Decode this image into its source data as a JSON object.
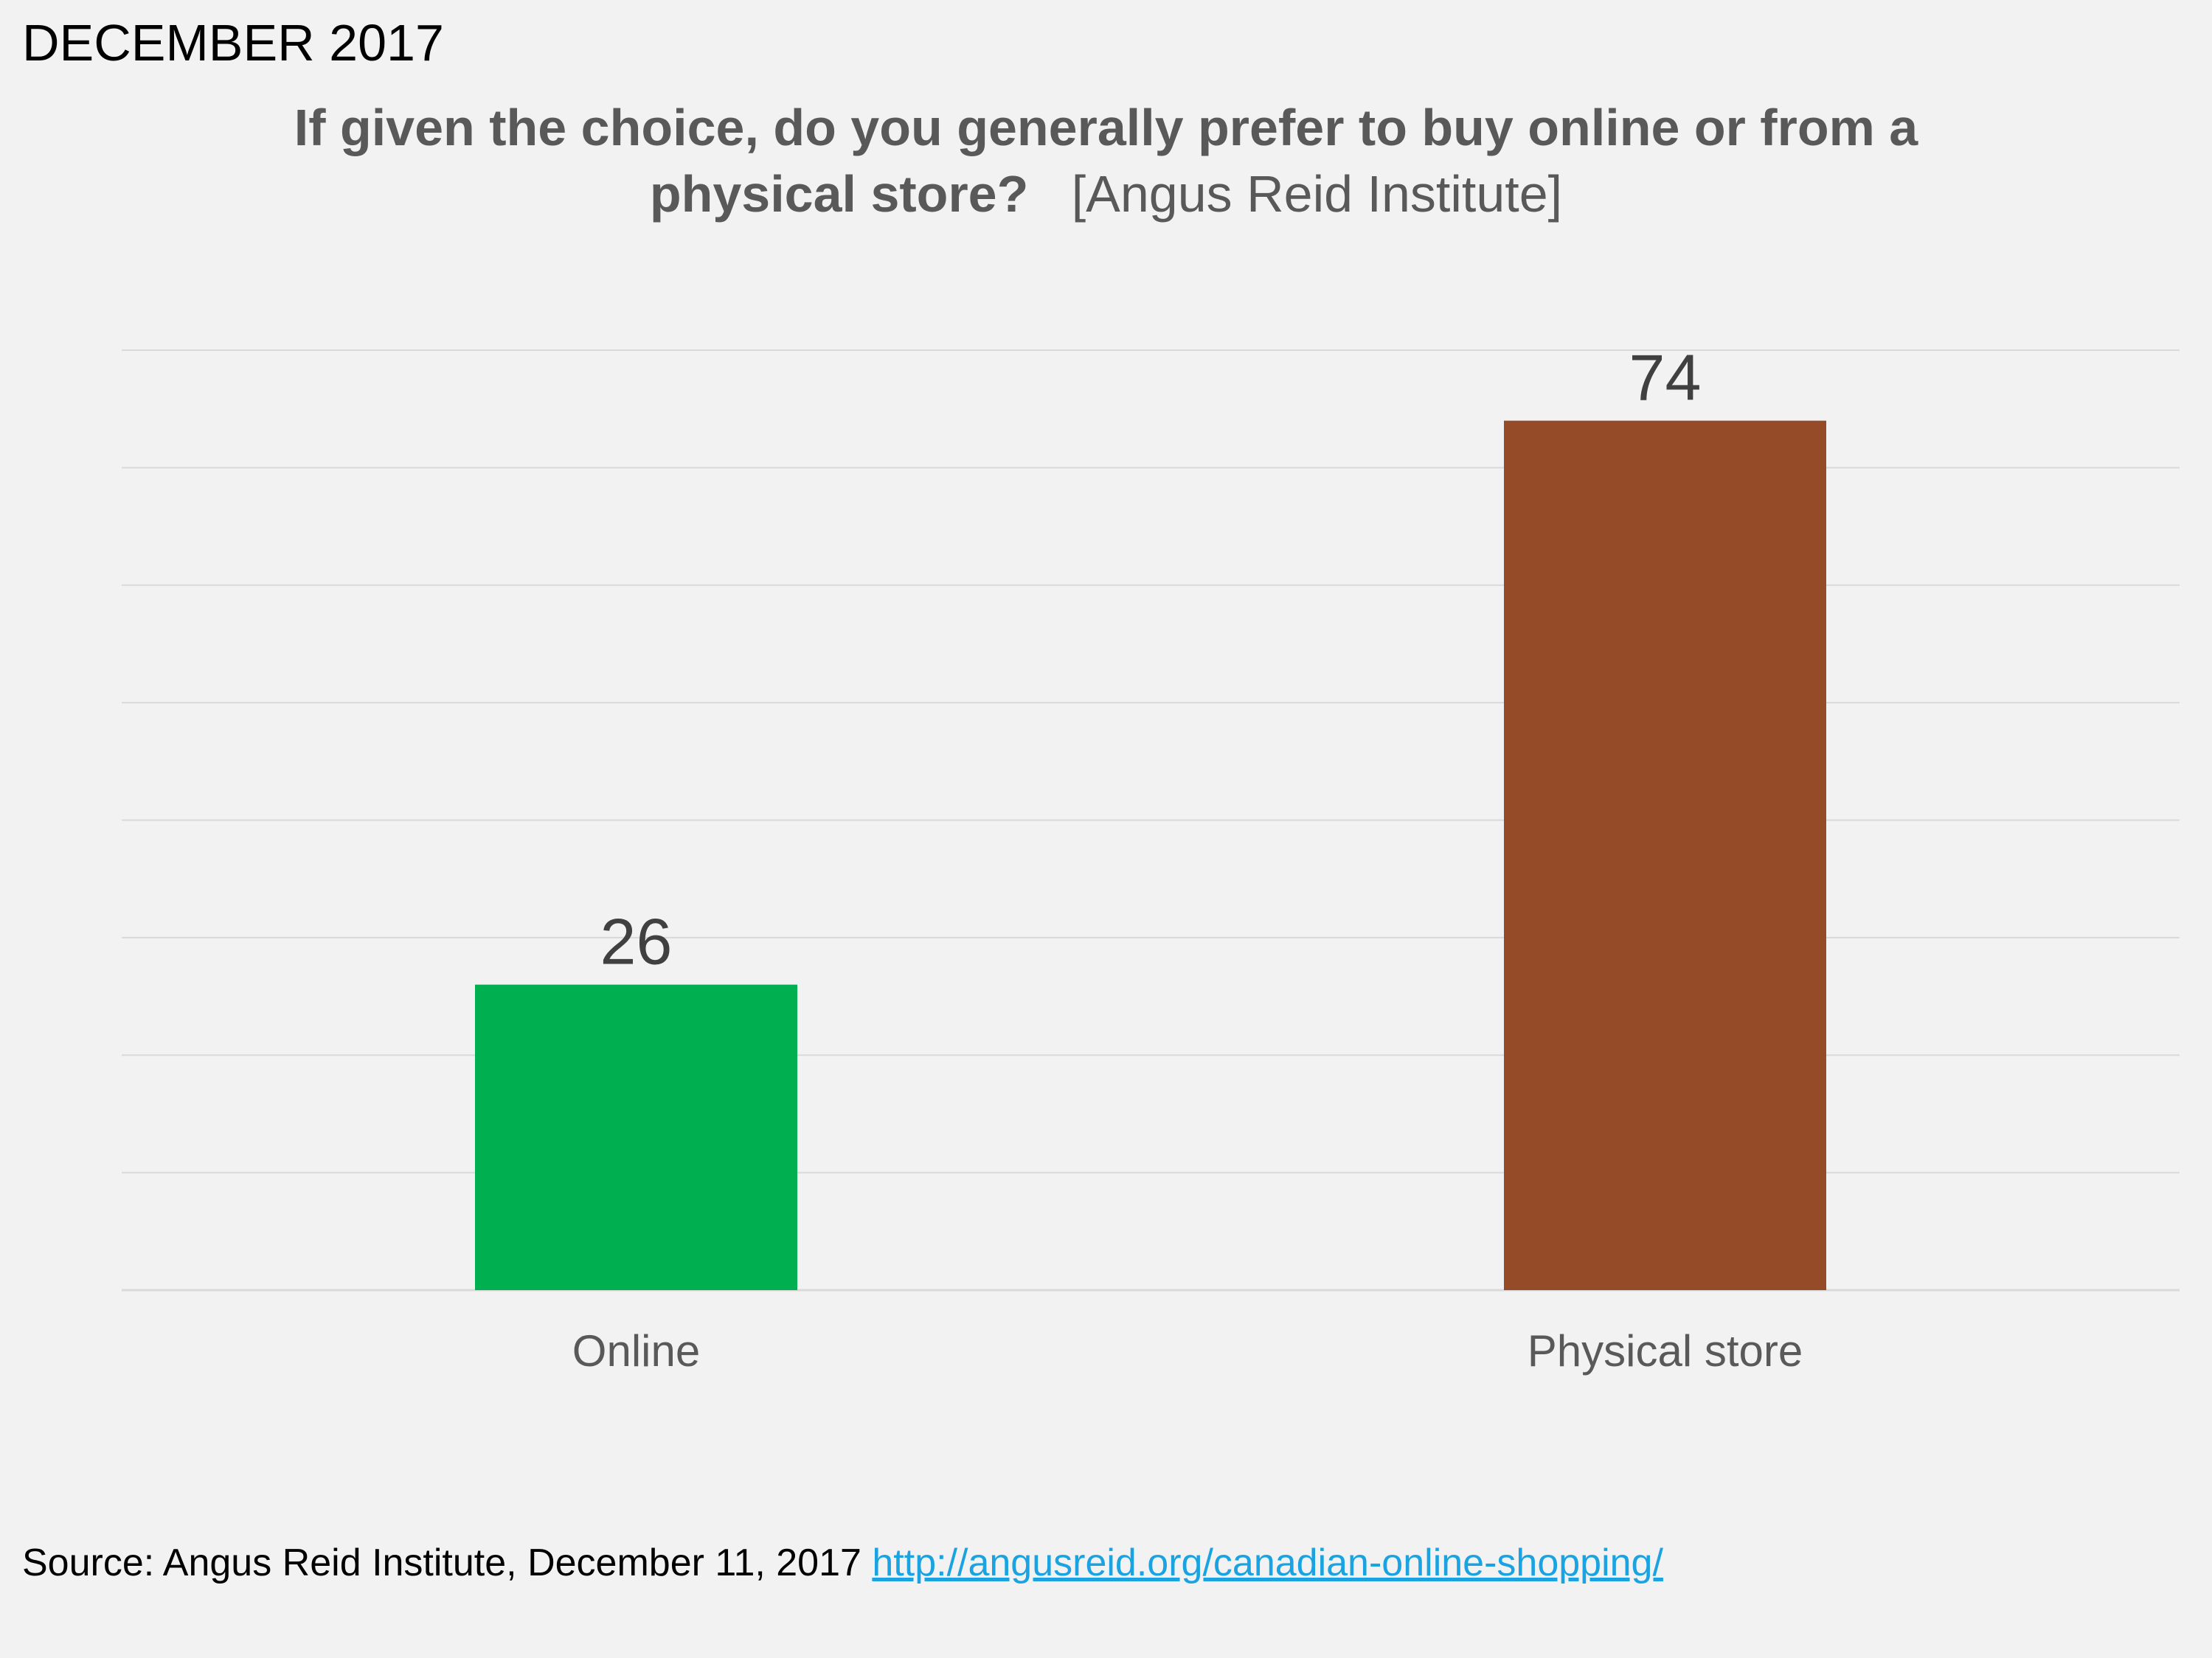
{
  "header": {
    "date_stamp": "DECEMBER 2017",
    "title_line1": "If given the choice, do you generally prefer to buy online or from a",
    "title_line2_bold": "physical store?",
    "title_line2_source": "[Angus Reid Institute]"
  },
  "chart_data": {
    "type": "bar",
    "title": "If given the choice, do you generally prefer to buy online or from a physical store?",
    "categories": [
      "Online",
      "Physical store"
    ],
    "values": [
      26,
      74
    ],
    "value_labels": [
      "26",
      "74"
    ],
    "colors": [
      "#00b050",
      "#954b27"
    ],
    "ylim": [
      0,
      80
    ],
    "grid": true,
    "legend": "none",
    "xlabel": "",
    "ylabel": ""
  },
  "footer": {
    "source_prefix": "Source:  Angus Reid Institute, December 11, 2017",
    "link_text": "http://angusreid.org/canadian-online-shopping/"
  },
  "colors": {
    "background": "#f2f2f2",
    "gridline": "#d9d9d9",
    "title_text": "#595959",
    "label_text": "#404040",
    "link": "#1aa3e0"
  }
}
